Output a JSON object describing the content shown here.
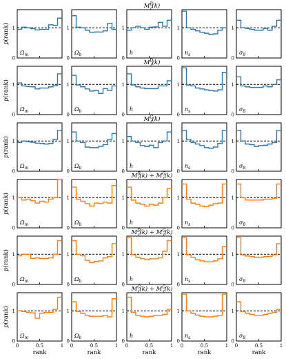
{
  "chart_data": {
    "type": "step-histogram-grid",
    "ylabel": "p(rank)",
    "xlabel": "rank",
    "xlim": [
      0,
      1
    ],
    "ylim": [
      0,
      1.6
    ],
    "x_ticks": [
      "0",
      "0.5",
      "1"
    ],
    "y_ticks": [
      "0",
      "1"
    ],
    "reference_line": 1,
    "bins": 10,
    "params": [
      "Ωm",
      "Ωb",
      "h",
      "ns",
      "σ8"
    ],
    "colors": {
      "blue": "#2b7bb2",
      "orange": "#ff7f0e"
    },
    "rows": [
      {
        "title": "M_ℓ^B(k)",
        "color": "blue",
        "panels": [
          [
            0.95,
            1.02,
            1.0,
            0.97,
            0.93,
            0.95,
            0.95,
            1.1,
            1.08,
            1.32
          ],
          [
            1.4,
            1.02,
            1.0,
            0.92,
            0.85,
            0.86,
            0.86,
            0.9,
            1.15,
            0.95
          ],
          [
            0.92,
            1.0,
            1.05,
            1.0,
            0.95,
            1.02,
            1.03,
            1.18,
            1.05,
            1.25
          ],
          [
            1.55,
            1.0,
            0.95,
            0.9,
            0.85,
            0.82,
            0.78,
            0.8,
            0.92,
            1.0
          ],
          [
            1.25,
            1.0,
            0.98,
            0.95,
            0.92,
            0.92,
            0.98,
            0.92,
            1.05,
            1.25
          ]
        ]
      },
      {
        "title": "M_ℓ^D(k)",
        "color": "blue",
        "panels": [
          [
            1.05,
            0.95,
            0.93,
            0.92,
            0.85,
            0.88,
            0.88,
            0.92,
            0.96,
            1.35
          ],
          [
            1.3,
            0.98,
            0.92,
            0.85,
            0.78,
            0.8,
            0.7,
            0.86,
            0.8,
            0.95
          ],
          [
            1.35,
            0.98,
            0.92,
            0.88,
            0.86,
            0.86,
            0.86,
            0.95,
            0.95,
            1.12
          ],
          [
            1.55,
            0.98,
            0.95,
            0.88,
            0.85,
            0.82,
            0.8,
            0.78,
            0.82,
            1.4
          ],
          [
            1.25,
            0.95,
            0.92,
            0.9,
            0.9,
            0.9,
            0.95,
            0.92,
            1.0,
            1.15
          ]
        ]
      },
      {
        "title": "M_ℓ^G(k)",
        "color": "blue",
        "panels": [
          [
            0.95,
            1.0,
            0.98,
            0.96,
            0.93,
            0.92,
            0.9,
            0.92,
            1.05,
            1.35
          ],
          [
            1.3,
            1.0,
            0.95,
            0.8,
            0.78,
            0.78,
            0.82,
            0.88,
            1.05,
            1.25
          ],
          [
            1.15,
            1.0,
            0.95,
            0.85,
            0.82,
            0.86,
            0.78,
            0.95,
            1.0,
            1.3
          ],
          [
            1.35,
            1.05,
            0.95,
            0.9,
            0.85,
            0.78,
            0.76,
            0.8,
            0.92,
            1.35
          ],
          [
            1.35,
            1.0,
            0.9,
            0.88,
            0.82,
            0.85,
            0.86,
            0.9,
            0.95,
            1.35
          ]
        ]
      },
      {
        "title": "M_ℓ^B(k) + M_ℓ^G(k)",
        "color": "orange",
        "panels": [
          [
            1.0,
            0.92,
            0.95,
            0.9,
            0.82,
            0.88,
            0.85,
            0.95,
            1.0,
            1.6
          ],
          [
            1.35,
            0.95,
            0.88,
            0.8,
            0.72,
            0.82,
            0.8,
            0.85,
            0.82,
            1.4
          ],
          [
            1.35,
            0.92,
            0.82,
            0.78,
            0.72,
            0.78,
            0.75,
            0.82,
            1.0,
            1.3
          ],
          [
            1.45,
            0.95,
            0.82,
            0.78,
            0.72,
            0.7,
            0.75,
            0.8,
            0.82,
            1.45
          ],
          [
            1.45,
            1.0,
            0.92,
            0.92,
            0.92,
            0.92,
            0.95,
            0.95,
            0.98,
            1.45
          ]
        ]
      },
      {
        "title": "M_ℓ^D(k) + M_ℓ^G(k)",
        "color": "orange",
        "panels": [
          [
            0.95,
            1.0,
            1.0,
            0.86,
            0.88,
            0.86,
            0.86,
            0.88,
            1.0,
            1.45
          ],
          [
            1.45,
            1.0,
            0.95,
            0.8,
            0.72,
            0.76,
            0.78,
            0.88,
            0.92,
            1.35
          ],
          [
            1.55,
            0.98,
            0.9,
            0.85,
            0.82,
            0.85,
            0.85,
            0.88,
            1.1,
            1.45
          ],
          [
            1.55,
            0.98,
            0.9,
            0.82,
            0.78,
            0.75,
            0.75,
            0.78,
            0.85,
            1.25
          ],
          [
            1.55,
            0.98,
            0.94,
            0.92,
            0.9,
            0.9,
            0.92,
            0.93,
            0.98,
            1.35
          ]
        ]
      },
      {
        "title": "M_ℓ^C(k) + M_ℓ^G(k)",
        "color": "orange",
        "panels": [
          [
            1.0,
            0.98,
            0.95,
            0.93,
            0.75,
            0.92,
            0.95,
            0.95,
            1.05,
            1.45
          ],
          [
            1.3,
            0.98,
            0.92,
            0.85,
            0.82,
            0.82,
            0.82,
            0.85,
            0.8,
            1.4
          ],
          [
            1.45,
            0.95,
            0.85,
            0.82,
            0.8,
            0.82,
            0.85,
            0.85,
            0.88,
            1.05
          ],
          [
            1.55,
            1.0,
            0.92,
            0.86,
            0.82,
            0.8,
            0.8,
            0.82,
            0.85,
            1.55
          ],
          [
            1.3,
            0.98,
            0.92,
            0.88,
            0.85,
            0.85,
            0.88,
            0.92,
            0.95,
            1.05
          ]
        ]
      }
    ]
  }
}
